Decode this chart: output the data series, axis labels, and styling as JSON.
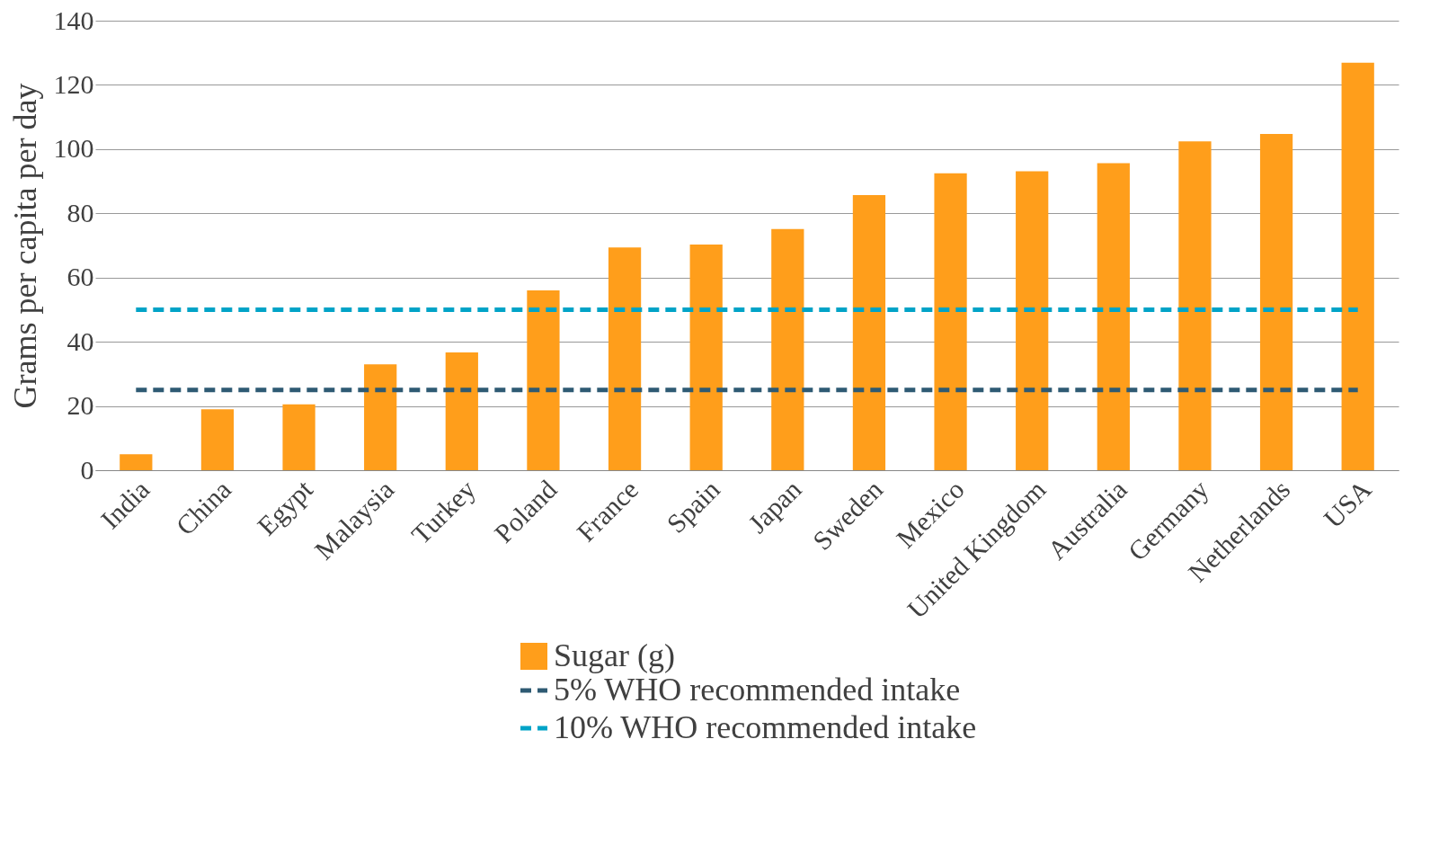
{
  "chart_data": {
    "type": "bar",
    "ylabel": "Grams per capita per day",
    "categories": [
      "India",
      "China",
      "Egypt",
      "Malaysia",
      "Turkey",
      "Poland",
      "France",
      "Spain",
      "Japan",
      "Sweden",
      "Mexico",
      "United Kingdom",
      "Australia",
      "Germany",
      "Netherlands",
      "USA"
    ],
    "series": [
      {
        "name": "Sugar (g)",
        "color": "#ff9e1b",
        "values": [
          5,
          19,
          20.5,
          33,
          36.7,
          56,
          69.4,
          70.3,
          75.1,
          85.7,
          92.5,
          93.1,
          95.6,
          102.4,
          104.7,
          126.9
        ]
      },
      {
        "name": "5% WHO recommended intake",
        "type": "line",
        "line_style": "dashed",
        "color": "#2e5a73",
        "values": [
          25,
          25,
          25,
          25,
          25,
          25,
          25,
          25,
          25,
          25,
          25,
          25,
          25,
          25,
          25,
          25
        ]
      },
      {
        "name": "10% WHO recommended intake",
        "type": "line",
        "line_style": "dashed",
        "color": "#00a3c7",
        "values": [
          50,
          50,
          50,
          50,
          50,
          50,
          50,
          50,
          50,
          50,
          50,
          50,
          50,
          50,
          50,
          50
        ]
      }
    ],
    "ylim": [
      0,
      140
    ],
    "yticks": [
      0,
      20,
      40,
      60,
      80,
      100,
      120,
      140
    ],
    "grid": "y",
    "legend": "bottom"
  }
}
